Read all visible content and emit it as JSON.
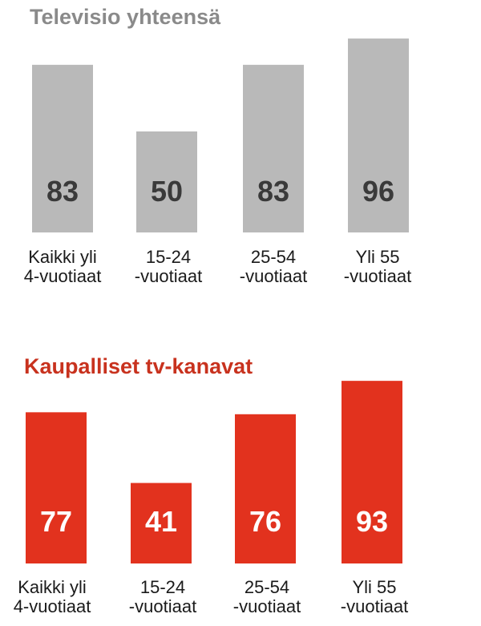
{
  "chart_data": [
    {
      "type": "bar",
      "title": "Televisio yhteensä",
      "categories": [
        [
          "Kaikki yli",
          "4-vuotiaat"
        ],
        [
          "15-24",
          "-vuotiaat"
        ],
        [
          "25-54",
          "-vuotiaat"
        ],
        [
          "Yli 55",
          "-vuotiaat"
        ]
      ],
      "values": [
        83,
        50,
        83,
        96
      ],
      "ylim": [
        0,
        100
      ],
      "grid": false,
      "bar_color": "#b9b9b9",
      "value_label_color": "#3a3a3a",
      "title_color": "#8a8a8a"
    },
    {
      "type": "bar",
      "title": "Kaupalliset tv-kanavat",
      "categories": [
        [
          "Kaikki yli",
          "4-vuotiaat"
        ],
        [
          "15-24",
          "-vuotiaat"
        ],
        [
          "25-54",
          "-vuotiaat"
        ],
        [
          "Yli 55",
          "-vuotiaat"
        ]
      ],
      "values": [
        77,
        41,
        76,
        93
      ],
      "ylim": [
        0,
        100
      ],
      "grid": false,
      "bar_color": "#e2321e",
      "value_label_color": "#ffffff",
      "title_color": "#c8321e"
    }
  ]
}
